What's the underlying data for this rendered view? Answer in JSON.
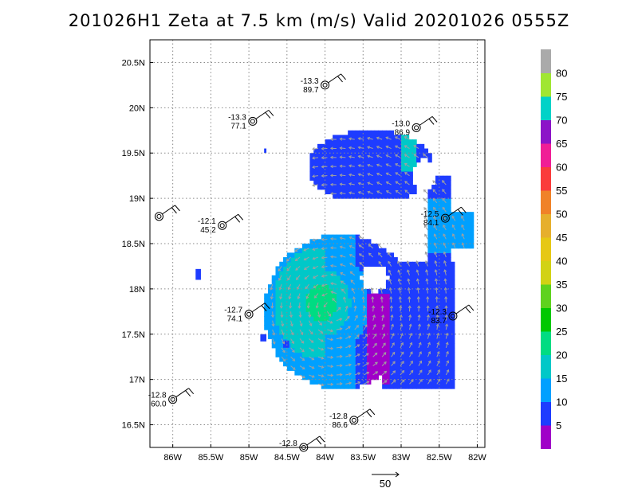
{
  "title": "201026H1 Zeta at 7.5 km (m/s) Valid 20201026 0555Z",
  "chart_data": {
    "type": "heatmap",
    "title": "201026H1 Zeta at 7.5 km (m/s) Valid 20201026 0555Z",
    "x_ticks": [
      {
        "value": -86.0,
        "label": "86W"
      },
      {
        "value": -85.5,
        "label": "85.5W"
      },
      {
        "value": -85.0,
        "label": "85W"
      },
      {
        "value": -84.5,
        "label": "84.5W"
      },
      {
        "value": -84.0,
        "label": "84W"
      },
      {
        "value": -83.5,
        "label": "83.5W"
      },
      {
        "value": -83.0,
        "label": "83W"
      },
      {
        "value": -82.5,
        "label": "82.5W"
      },
      {
        "value": -82.0,
        "label": "82W"
      }
    ],
    "y_ticks": [
      {
        "value": 16.5,
        "label": "16.5N"
      },
      {
        "value": 17.0,
        "label": "17N"
      },
      {
        "value": 17.5,
        "label": "17.5N"
      },
      {
        "value": 18.0,
        "label": "18N"
      },
      {
        "value": 18.5,
        "label": "18.5N"
      },
      {
        "value": 19.0,
        "label": "19N"
      },
      {
        "value": 19.5,
        "label": "19.5N"
      },
      {
        "value": 20.0,
        "label": "20N"
      },
      {
        "value": 20.5,
        "label": "20.5N"
      }
    ],
    "xlim": [
      -86.3,
      -81.9
    ],
    "ylim": [
      16.25,
      20.75
    ],
    "grid": true,
    "colorbar": {
      "labels": [
        "5",
        "10",
        "15",
        "20",
        "25",
        "30",
        "35",
        "40",
        "45",
        "50",
        "55",
        "60",
        "65",
        "70",
        "75",
        "80"
      ],
      "colors": [
        "#a000c8",
        "#1e3cff",
        "#00a0ff",
        "#00c8c8",
        "#00dc82",
        "#00c800",
        "#5fd21e",
        "#d2d214",
        "#e6c814",
        "#e6af2d",
        "#f08228",
        "#fa3c3c",
        "#f01e96",
        "#8c14c8",
        "#00d2c8",
        "#a0e632",
        "#aaaaaa"
      ]
    },
    "vector_reference": {
      "label": "50"
    },
    "observations": [
      {
        "temp": "-13.3",
        "pres": "89.7",
        "lon": -84.0,
        "lat": 20.25
      },
      {
        "temp": "-13.3",
        "pres": "77.1",
        "lon": -84.95,
        "lat": 19.85
      },
      {
        "temp": "-13.0",
        "pres": "86.9",
        "lon": -82.8,
        "lat": 19.78
      },
      {
        "temp": "",
        "pres": "",
        "lon": -86.18,
        "lat": 18.8
      },
      {
        "temp": "-12.1",
        "pres": "45.2",
        "lon": -85.35,
        "lat": 18.7
      },
      {
        "temp": "-12.5",
        "pres": "84.1",
        "lon": -82.42,
        "lat": 18.78
      },
      {
        "temp": "-12.7",
        "pres": "74.1",
        "lon": -85.0,
        "lat": 17.72
      },
      {
        "temp": "-12.3",
        "pres": "83.7",
        "lon": -82.32,
        "lat": 17.7
      },
      {
        "temp": "-12.8",
        "pres": "60.0",
        "lon": -86.0,
        "lat": 16.78
      },
      {
        "temp": "-12.8",
        "pres": "86.6",
        "lon": -83.62,
        "lat": 16.55
      },
      {
        "temp": "-12.8",
        "pres": "",
        "lon": -84.28,
        "lat": 16.25
      }
    ]
  }
}
